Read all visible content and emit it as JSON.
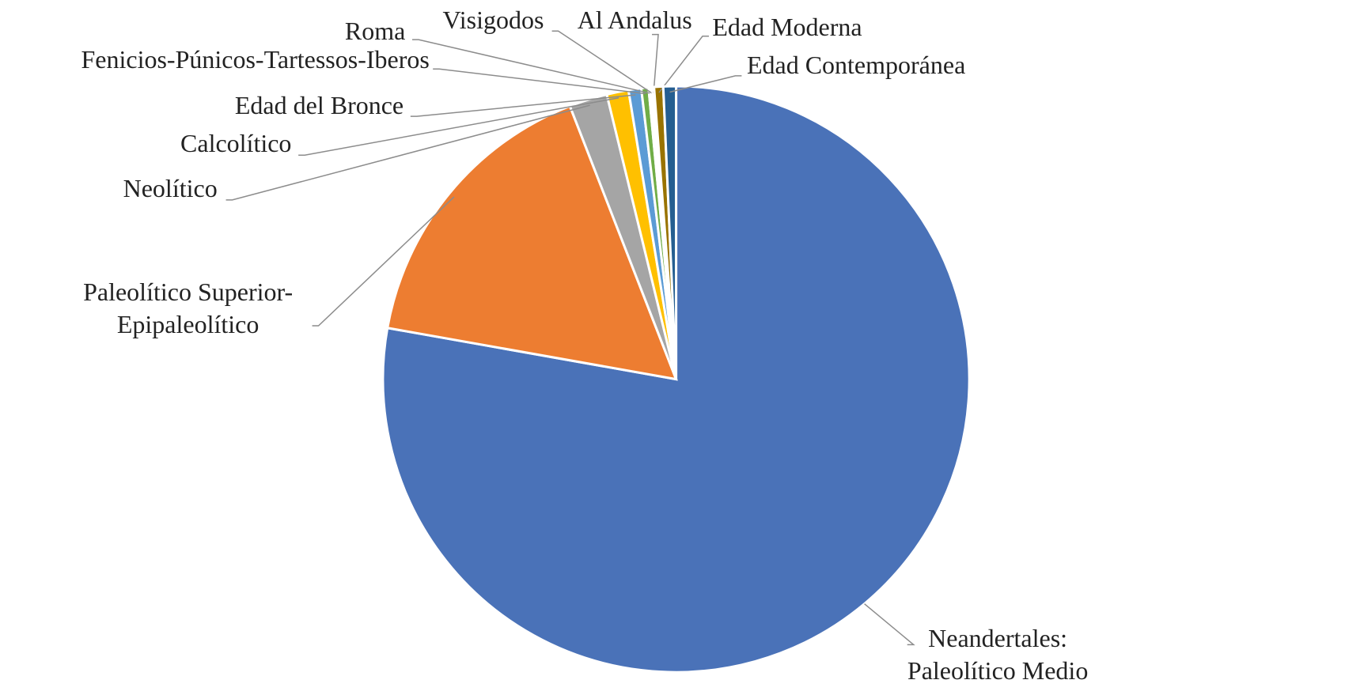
{
  "chart_data": {
    "type": "pie",
    "categories": [
      "Neandertales: Paleolítico Medio",
      "Paleolítico Superior-Epipaleolítico",
      "Neolítico",
      "Calcolítico",
      "Edad del Bronce",
      "Fenicios-Púnicos-Tartessos-Iberos",
      "Roma",
      "Visigodos",
      "Al Andalus",
      "Edad Moderna",
      "Edad Contemporánea"
    ],
    "values": [
      77.8,
      16.3,
      2.1,
      1.2,
      0.7,
      0.4,
      0.1,
      0.1,
      0.1,
      0.5,
      0.7
    ],
    "colors": [
      "#4a72b8",
      "#ed7d31",
      "#a5a5a5",
      "#ffc000",
      "#5b9bd5",
      "#70ad47",
      "#264478",
      "#9e480e",
      "#636363",
      "#997300",
      "#255e91"
    ]
  }
}
